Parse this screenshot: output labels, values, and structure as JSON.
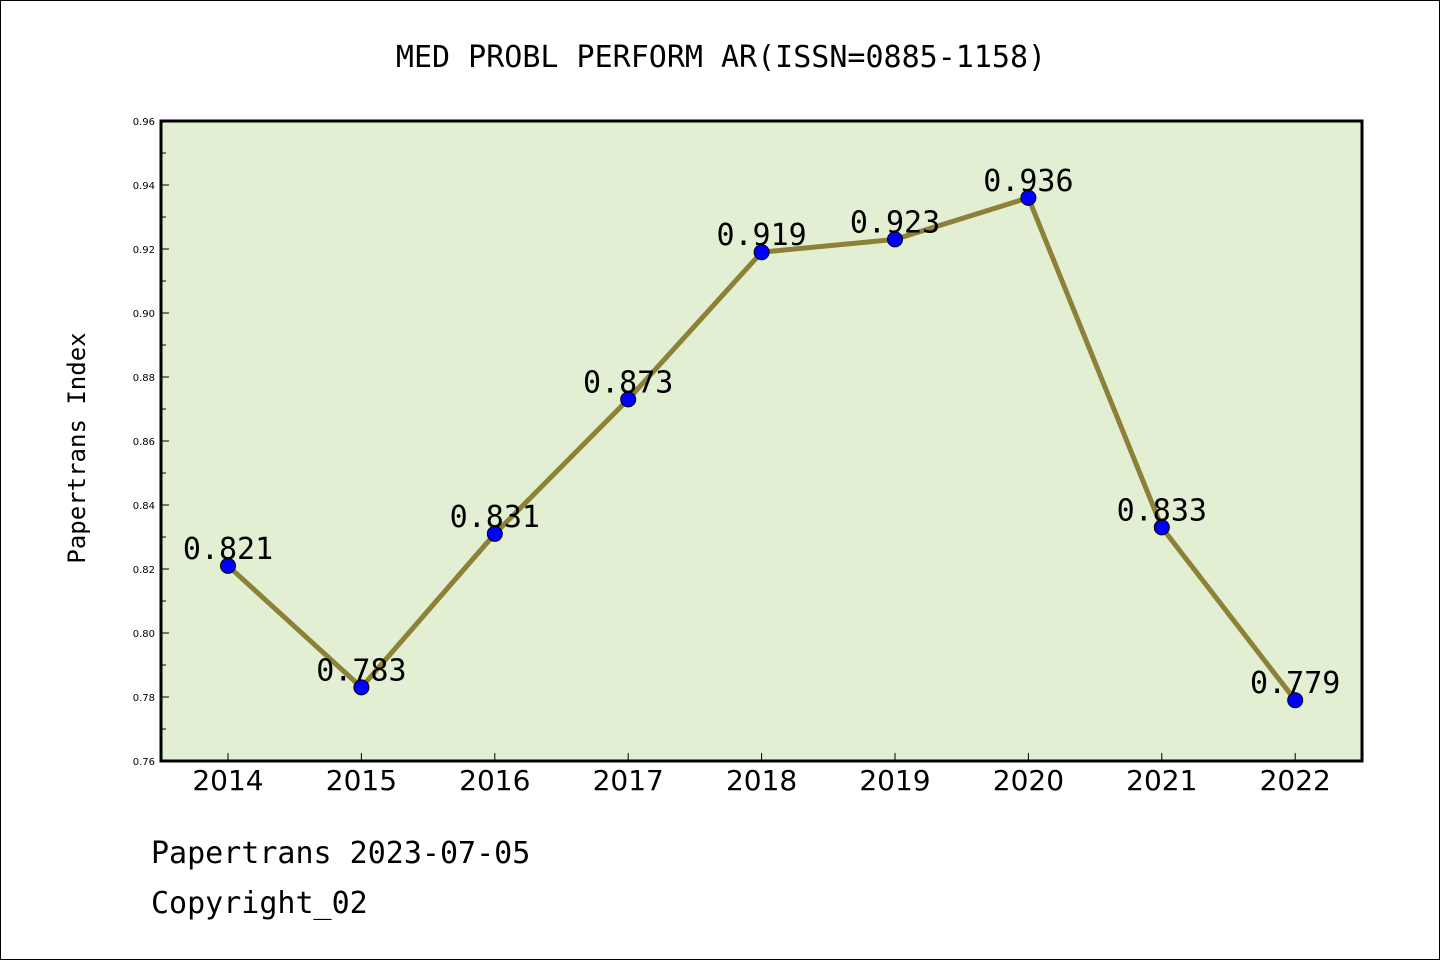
{
  "chart_data": {
    "type": "line",
    "title": "MED PROBL PERFORM AR(ISSN=0885-1158)",
    "ylabel": "Papertrans Index",
    "xlabel": "",
    "categories": [
      "2014",
      "2015",
      "2016",
      "2017",
      "2018",
      "2019",
      "2020",
      "2021",
      "2022"
    ],
    "values": [
      0.821,
      0.783,
      0.831,
      0.873,
      0.919,
      0.923,
      0.936,
      0.833,
      0.779
    ],
    "data_labels": [
      "0.821",
      "0.783",
      "0.831",
      "0.873",
      "0.919",
      "0.923",
      "0.936",
      "0.833",
      "0.779"
    ],
    "ylim": [
      0.76,
      0.96
    ],
    "y_ticks": [
      "0.76",
      "0.78",
      "0.80",
      "0.82",
      "0.84",
      "0.86",
      "0.88",
      "0.90",
      "0.92",
      "0.94",
      "0.96"
    ],
    "grid": false,
    "colors": {
      "plot_background": "#e2efd3",
      "line": "#8c8136",
      "marker": "#0000ff"
    }
  },
  "footer": {
    "source": "Papertrans 2023-07-05",
    "copyright": "Copyright_02"
  }
}
